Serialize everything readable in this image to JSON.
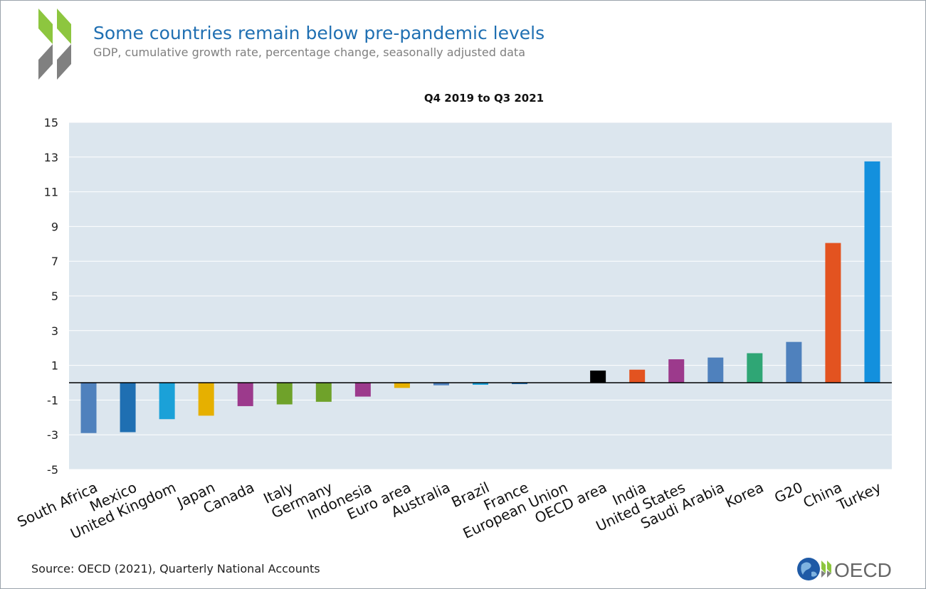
{
  "header": {
    "title": "Some countries remain below pre-pandemic levels",
    "subtitle": "GDP, cumulative growth rate, percentage change, seasonally adjusted data"
  },
  "footer": {
    "source": "Source: OECD (2021),  Quarterly National Accounts",
    "brand": "OECD"
  },
  "colors": {
    "title": "#1f6fb2",
    "plot_bg": "#dce6ee",
    "logo_green": "#8dc63f",
    "logo_grey": "#808080"
  },
  "chart_data": {
    "type": "bar",
    "title": "Q4 2019 to Q3 2021",
    "xlabel": "",
    "ylabel": "",
    "ylim": [
      -5,
      15
    ],
    "yticks": [
      15,
      13,
      11,
      9,
      7,
      5,
      3,
      1,
      -1,
      -3,
      -5
    ],
    "grid": true,
    "categories": [
      "South Africa",
      "Mexico",
      "United Kingdom",
      "Japan",
      "Canada",
      "Italy",
      "Germany",
      "Indonesia",
      "Euro area",
      "Australia",
      "Brazil",
      "France",
      "European Union",
      "OECD area",
      "India",
      "United States",
      "Saudi Arabia",
      "Korea",
      "G20",
      "China",
      "Turkey"
    ],
    "values": [
      -2.9,
      -2.85,
      -2.1,
      -1.9,
      -1.35,
      -1.25,
      -1.1,
      -0.8,
      -0.3,
      -0.15,
      -0.12,
      -0.08,
      0.0,
      0.7,
      0.75,
      1.35,
      1.45,
      1.7,
      2.35,
      8.05,
      12.75
    ],
    "bar_colors": [
      "#4f81bd",
      "#1f6fb2",
      "#1ba1d8",
      "#e6b000",
      "#9c3a8c",
      "#6fa22a",
      "#6fa22a",
      "#9c3a8c",
      "#e6b000",
      "#4f81bd",
      "#1ba1d8",
      "#1f6fb2",
      "#1ba1d8",
      "#000000",
      "#e35320",
      "#9c3a8c",
      "#4f81bd",
      "#2fa675",
      "#4f81bd",
      "#e35320",
      "#1390dd"
    ]
  }
}
